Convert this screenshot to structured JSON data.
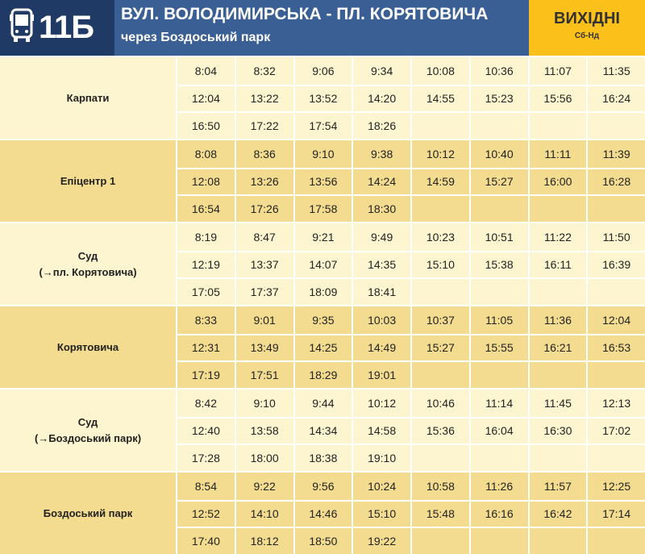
{
  "header": {
    "route_number": "11Б",
    "route_title": "ВУЛ. ВОЛОДИМИРСЬКА - ПЛ. КОРЯТОВИЧА",
    "route_via": "через Боздоський парк",
    "day_type": "ВИХІДНІ",
    "days": "Сб-Нд",
    "icon": "bus-icon"
  },
  "colors": {
    "header_dark": "#1f3a64",
    "header_blue": "#3a5f95",
    "header_yellow": "#fcc01a",
    "row_light": "#fdf5cf",
    "row_dark": "#f3dc8f"
  },
  "stops": [
    {
      "name": [
        "Карпати"
      ],
      "times": [
        [
          "8:04",
          "8:32",
          "9:06",
          "9:34",
          "10:08",
          "10:36",
          "11:07",
          "11:35"
        ],
        [
          "12:04",
          "13:22",
          "13:52",
          "14:20",
          "14:55",
          "15:23",
          "15:56",
          "16:24"
        ],
        [
          "16:50",
          "17:22",
          "17:54",
          "18:26",
          "",
          "",
          "",
          ""
        ]
      ]
    },
    {
      "name": [
        "Епіцентр 1"
      ],
      "times": [
        [
          "8:08",
          "8:36",
          "9:10",
          "9:38",
          "10:12",
          "10:40",
          "11:11",
          "11:39"
        ],
        [
          "12:08",
          "13:26",
          "13:56",
          "14:24",
          "14:59",
          "15:27",
          "16:00",
          "16:28"
        ],
        [
          "16:54",
          "17:26",
          "17:58",
          "18:30",
          "",
          "",
          "",
          ""
        ]
      ]
    },
    {
      "name": [
        "Суд",
        "(→пл. Корятовича)"
      ],
      "times": [
        [
          "8:19",
          "8:47",
          "9:21",
          "9:49",
          "10:23",
          "10:51",
          "11:22",
          "11:50"
        ],
        [
          "12:19",
          "13:37",
          "14:07",
          "14:35",
          "15:10",
          "15:38",
          "16:11",
          "16:39"
        ],
        [
          "17:05",
          "17:37",
          "18:09",
          "18:41",
          "",
          "",
          "",
          ""
        ]
      ]
    },
    {
      "name": [
        "Корятовича"
      ],
      "times": [
        [
          "8:33",
          "9:01",
          "9:35",
          "10:03",
          "10:37",
          "11:05",
          "11:36",
          "12:04"
        ],
        [
          "12:31",
          "13:49",
          "14:25",
          "14:49",
          "15:27",
          "15:55",
          "16:21",
          "16:53"
        ],
        [
          "17:19",
          "17:51",
          "18:29",
          "19:01",
          "",
          "",
          "",
          ""
        ]
      ]
    },
    {
      "name": [
        "Суд",
        "(→Боздоський парк)"
      ],
      "times": [
        [
          "8:42",
          "9:10",
          "9:44",
          "10:12",
          "10:46",
          "11:14",
          "11:45",
          "12:13"
        ],
        [
          "12:40",
          "13:58",
          "14:34",
          "14:58",
          "15:36",
          "16:04",
          "16:30",
          "17:02"
        ],
        [
          "17:28",
          "18:00",
          "18:38",
          "19:10",
          "",
          "",
          "",
          ""
        ]
      ]
    },
    {
      "name": [
        "Боздоський парк"
      ],
      "times": [
        [
          "8:54",
          "9:22",
          "9:56",
          "10:24",
          "10:58",
          "11:26",
          "11:57",
          "12:25"
        ],
        [
          "12:52",
          "14:10",
          "14:46",
          "15:10",
          "15:48",
          "16:16",
          "16:42",
          "17:14"
        ],
        [
          "17:40",
          "18:12",
          "18:50",
          "19:22",
          "",
          "",
          "",
          ""
        ]
      ]
    }
  ]
}
